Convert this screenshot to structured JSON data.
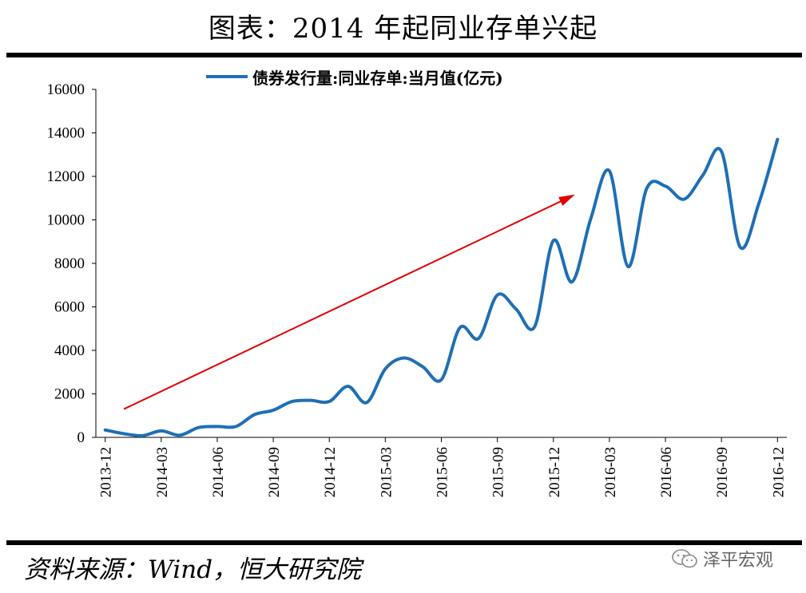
{
  "title": "图表：2014 年起同业存单兴起",
  "source": "资料来源：Wind，恒大研究院",
  "watermark": {
    "text": "泽平宏观",
    "icon": "wechat-chat-bubbles-icon"
  },
  "colors": {
    "series": "#1f6fb4",
    "arrow": "#e00000",
    "rule": "#000000"
  },
  "chart_data": {
    "type": "line",
    "ylim": [
      0,
      16000
    ],
    "yticks": [
      0,
      2000,
      4000,
      6000,
      8000,
      10000,
      12000,
      14000,
      16000
    ],
    "xtick_labels": [
      "2013-12",
      "2014-03",
      "2014-06",
      "2014-09",
      "2014-12",
      "2015-03",
      "2015-06",
      "2015-09",
      "2015-12",
      "2016-03",
      "2016-06",
      "2016-09",
      "2016-12"
    ],
    "legend_position": "top",
    "grid": false,
    "series": [
      {
        "name": "债券发行量:同业存单:当月值(亿元)",
        "x": [
          "2013-12",
          "2014-01",
          "2014-02",
          "2014-03",
          "2014-04",
          "2014-05",
          "2014-06",
          "2014-07",
          "2014-08",
          "2014-09",
          "2014-10",
          "2014-11",
          "2014-12",
          "2015-01",
          "2015-02",
          "2015-03",
          "2015-04",
          "2015-05",
          "2015-06",
          "2015-07",
          "2015-08",
          "2015-09",
          "2015-10",
          "2015-11",
          "2015-12",
          "2016-01",
          "2016-02",
          "2016-03",
          "2016-04",
          "2016-05",
          "2016-06",
          "2016-07",
          "2016-08",
          "2016-09",
          "2016-10",
          "2016-11",
          "2016-12"
        ],
        "values": [
          340,
          170,
          80,
          300,
          100,
          450,
          500,
          500,
          1050,
          1250,
          1650,
          1700,
          1650,
          2350,
          1600,
          3150,
          3650,
          3250,
          2650,
          5050,
          4550,
          6550,
          5900,
          5100,
          9050,
          7150,
          10050,
          12250,
          7850,
          11450,
          11550,
          10950,
          12050,
          13150,
          8750,
          10750,
          13700
        ]
      }
    ],
    "annotation": {
      "type": "trend-arrow",
      "from": [
        "2014-01",
        1300
      ],
      "to": [
        "2016-01",
        11100
      ]
    }
  }
}
